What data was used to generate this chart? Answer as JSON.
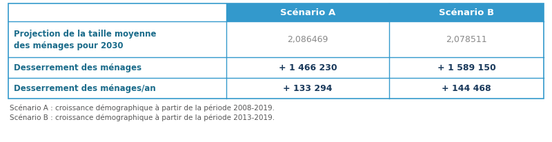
{
  "col_headers": [
    "Scénario A",
    "Scénario B"
  ],
  "rows": [
    {
      "label": "Projection de la taille moyenne\ndes ménages pour 2030",
      "values": [
        "2,086469",
        "2,078511"
      ],
      "bold_label": true,
      "bold_values": false,
      "tall": true
    },
    {
      "label": "Desserrement des ménages",
      "values": [
        "+ 1 466 230",
        "+ 1 589 150"
      ],
      "bold_label": true,
      "bold_values": true,
      "tall": false
    },
    {
      "label": "Desserrement des ménages/an",
      "values": [
        "+ 133 294",
        "+ 144 468"
      ],
      "bold_label": true,
      "bold_values": true,
      "tall": false
    }
  ],
  "footnotes": [
    "Scénario A : croissance démographique à partir de la période 2008-2019.",
    "Scénario B : croissance démographique à partir de la période 2013-2019."
  ],
  "header_text_color": "#ffffff",
  "label_text_color": "#1A6B8A",
  "value_text_color_bold": "#1A3A5C",
  "value_text_color_normal": "#888888",
  "border_color": "#3399CC",
  "bg_color": "#ffffff",
  "footnote_color": "#555555",
  "header_bg_color": "#3399CC",
  "col_header_font_size": 9.5,
  "label_font_size": 8.5,
  "value_font_size": 9,
  "footnote_font_size": 7.5
}
